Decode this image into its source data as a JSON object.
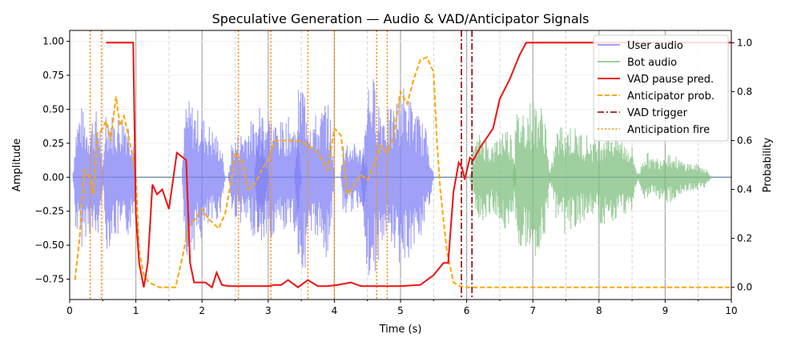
{
  "chart_data": {
    "type": "line",
    "title": "Speculative Generation — Audio & VAD/Anticipator Signals",
    "xlabel": "Time (s)",
    "ylabel_left": "Amplitude",
    "ylabel_right": "Probability",
    "xlim": [
      0,
      10
    ],
    "ylim_left": [
      -0.9,
      1.08
    ],
    "ylim_right": [
      -0.05,
      1.05
    ],
    "xticks": [
      0,
      1,
      2,
      3,
      4,
      5,
      6,
      7,
      8,
      9,
      10
    ],
    "yticks_left": [
      -0.75,
      -0.5,
      -0.25,
      0.0,
      0.25,
      0.5,
      0.75,
      1.0
    ],
    "ytick_labels_left": [
      "−0.75",
      "−0.50",
      "−0.25",
      "0.00",
      "0.25",
      "0.50",
      "0.75",
      "1.00"
    ],
    "yticks_right": [
      0.0,
      0.2,
      0.4,
      0.6,
      0.8,
      1.0
    ],
    "ytick_labels_right": [
      "0.0",
      "0.2",
      "0.4",
      "0.6",
      "0.8",
      "1.0"
    ],
    "grid": true,
    "legend_position": "top-right",
    "colors": {
      "user_audio": "#8080f5",
      "bot_audio": "#7fbf7f",
      "vad": "#ee1111",
      "anticipator": "#ffa500",
      "vad_trigger": "#8b0000",
      "anticipation_fire": "#ff8c00"
    },
    "user_audio_envelope": [
      {
        "start": 0.05,
        "end": 0.5,
        "peaks": [
          0.3,
          0.55,
          0.4,
          0.52,
          0.35
        ]
      },
      {
        "start": 0.5,
        "end": 1.0,
        "peaks": [
          0.6,
          0.45,
          0.5,
          0.3
        ]
      },
      {
        "start": 1.7,
        "end": 2.35,
        "peaks": [
          0.6,
          0.55,
          0.45,
          0.35,
          0.2
        ]
      },
      {
        "start": 2.4,
        "end": 3.0,
        "peaks": [
          0.25,
          0.35,
          0.45,
          0.3
        ]
      },
      {
        "start": 2.8,
        "end": 3.5,
        "peaks": [
          0.6,
          0.5,
          0.4,
          0.45,
          0.35
        ]
      },
      {
        "start": 3.4,
        "end": 4.0,
        "peaks": [
          0.55,
          0.75,
          0.5,
          0.45,
          0.6,
          0.3
        ]
      },
      {
        "start": 4.1,
        "end": 4.5,
        "peaks": [
          0.3,
          0.25,
          0.2
        ]
      },
      {
        "start": 4.4,
        "end": 5.5,
        "peaks": [
          0.6,
          0.8,
          0.55,
          0.5,
          0.7,
          0.55,
          0.4,
          0.25
        ]
      }
    ],
    "bot_audio_envelope": [
      {
        "start": 6.05,
        "end": 6.75,
        "peaks": [
          0.2,
          0.35,
          0.25,
          0.4,
          0.3
        ]
      },
      {
        "start": 6.7,
        "end": 7.25,
        "peaks": [
          0.45,
          0.55,
          0.6,
          0.4
        ]
      },
      {
        "start": 7.25,
        "end": 8.6,
        "peaks": [
          0.3,
          0.42,
          0.35,
          0.3,
          0.4,
          0.28,
          0.22
        ]
      },
      {
        "start": 8.6,
        "end": 9.7,
        "peaks": [
          0.25,
          0.14,
          0.2,
          0.12,
          0.1,
          0.06
        ]
      }
    ],
    "series": [
      {
        "name": "VAD pause pred.",
        "axis": "right",
        "x": [
          0.55,
          0.96,
          1.0,
          1.05,
          1.12,
          1.18,
          1.25,
          1.32,
          1.4,
          1.5,
          1.62,
          1.76,
          1.82,
          1.88,
          1.95,
          2.05,
          2.15,
          2.22,
          2.3,
          2.4,
          2.55,
          2.75,
          3.0,
          3.1,
          3.2,
          3.3,
          3.45,
          3.6,
          3.75,
          3.9,
          4.05,
          4.25,
          4.4,
          4.55,
          4.7,
          5.0,
          5.3,
          5.5,
          5.65,
          5.72,
          5.8,
          5.88,
          5.93,
          5.97,
          6.05,
          6.1,
          6.2,
          6.3,
          6.4,
          6.5,
          6.65,
          6.8,
          6.9,
          7.2,
          8.0,
          10.0
        ],
        "y": [
          1.0,
          1.0,
          0.3,
          0.1,
          0.0,
          0.1,
          0.42,
          0.38,
          0.4,
          0.32,
          0.55,
          0.52,
          0.1,
          0.02,
          0.02,
          0.02,
          0.0,
          0.06,
          0.01,
          0.005,
          0.005,
          0.005,
          0.005,
          0.01,
          0.01,
          0.03,
          0.0,
          0.03,
          0.005,
          0.005,
          0.01,
          0.02,
          0.005,
          0.005,
          0.005,
          0.005,
          0.01,
          0.05,
          0.1,
          0.1,
          0.39,
          0.51,
          0.49,
          0.44,
          0.53,
          0.52,
          0.57,
          0.61,
          0.65,
          0.77,
          0.85,
          0.95,
          1.0,
          1.0,
          1.0,
          1.0
        ]
      },
      {
        "name": "Anticipator prob.",
        "axis": "right",
        "x": [
          0.08,
          0.15,
          0.22,
          0.3,
          0.36,
          0.42,
          0.48,
          0.55,
          0.62,
          0.7,
          0.76,
          0.82,
          0.88,
          0.94,
          1.0,
          1.05,
          1.12,
          1.2,
          1.35,
          1.6,
          1.7,
          1.8,
          1.9,
          2.0,
          2.1,
          2.25,
          2.35,
          2.45,
          2.5,
          2.6,
          2.7,
          2.8,
          2.9,
          3.0,
          3.1,
          3.2,
          3.3,
          3.45,
          3.6,
          3.75,
          3.9,
          4.0,
          4.1,
          4.2,
          4.3,
          4.4,
          4.5,
          4.6,
          4.7,
          4.8,
          4.9,
          5.0,
          5.1,
          5.2,
          5.3,
          5.4,
          5.5,
          5.55,
          5.6,
          5.7,
          5.8,
          5.9,
          6.0,
          6.5,
          7.0,
          8.0,
          10.0
        ],
        "y": [
          0.03,
          0.2,
          0.48,
          0.45,
          0.38,
          0.63,
          0.64,
          0.68,
          0.6,
          0.78,
          0.66,
          0.7,
          0.63,
          0.55,
          0.45,
          0.15,
          0.05,
          0.02,
          0.0,
          0.0,
          0.12,
          0.25,
          0.28,
          0.32,
          0.28,
          0.24,
          0.3,
          0.45,
          0.55,
          0.52,
          0.4,
          0.42,
          0.48,
          0.52,
          0.6,
          0.6,
          0.6,
          0.6,
          0.58,
          0.55,
          0.48,
          0.65,
          0.62,
          0.38,
          0.42,
          0.46,
          0.44,
          0.5,
          0.58,
          0.55,
          0.62,
          0.8,
          0.75,
          0.85,
          0.93,
          0.94,
          0.88,
          0.6,
          0.4,
          0.15,
          0.02,
          0.005,
          0.0,
          0.0,
          0.0,
          0.0,
          0.0
        ]
      },
      {
        "name": "VAD trigger",
        "axis": "none",
        "vlines": [
          5.92,
          6.08
        ]
      },
      {
        "name": "Anticipation fire",
        "axis": "none",
        "vlines": [
          0.31,
          0.48,
          2.55,
          3.04,
          3.6,
          4.0,
          4.64,
          4.8
        ]
      }
    ],
    "legend": [
      "User audio",
      "Bot audio",
      "VAD pause pred.",
      "Anticipator prob.",
      "VAD trigger",
      "Anticipation fire"
    ]
  }
}
